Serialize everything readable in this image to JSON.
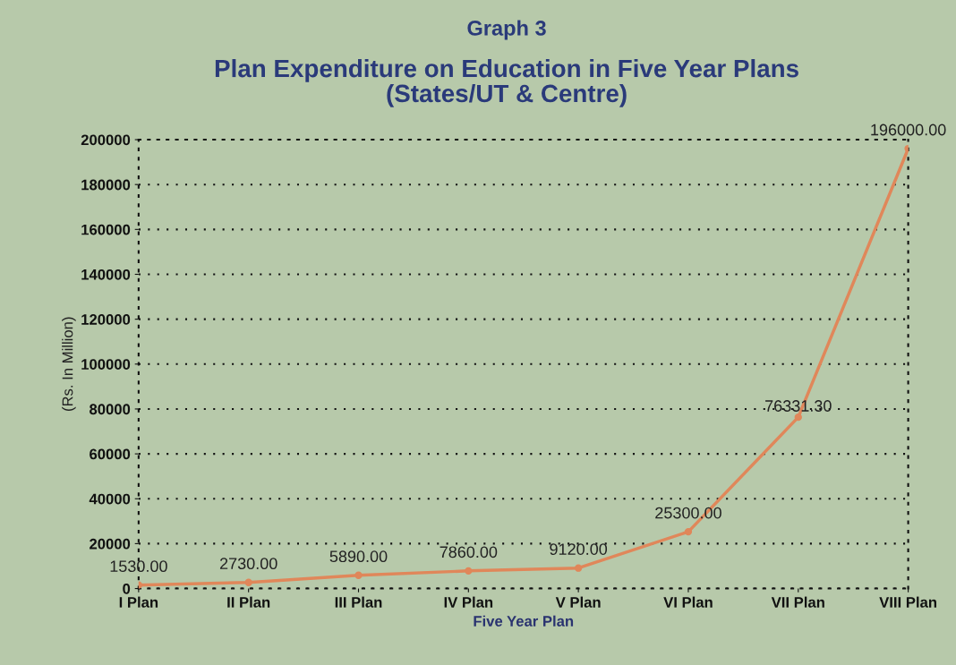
{
  "chart_data": {
    "type": "line",
    "title": "Graph 3",
    "subtitle": "Plan Expenditure on Education in Five Year Plans\n(States/UT & Centre)",
    "xlabel": "Five Year Plan",
    "ylabel": "(Rs. In Million)",
    "categories": [
      "I Plan",
      "II Plan",
      "III Plan",
      "IV Plan",
      "V Plan",
      "VI Plan",
      "VII Plan",
      "VIII Plan"
    ],
    "values": [
      1530,
      2730,
      5890,
      7860,
      9120,
      25300,
      76331.3,
      196000
    ],
    "value_labels": [
      "1530.00",
      "2730.00",
      "5890.00",
      "7860.00",
      "9120.00",
      "25300.00",
      "76331.30",
      "196000.00"
    ],
    "color": "#e0875a",
    "marker": "circle",
    "line_style": "solid",
    "ylim": [
      0,
      200000
    ],
    "yticks": [
      0,
      20000,
      40000,
      60000,
      80000,
      100000,
      120000,
      140000,
      160000,
      180000,
      200000
    ],
    "grid": "y",
    "legend": false
  }
}
